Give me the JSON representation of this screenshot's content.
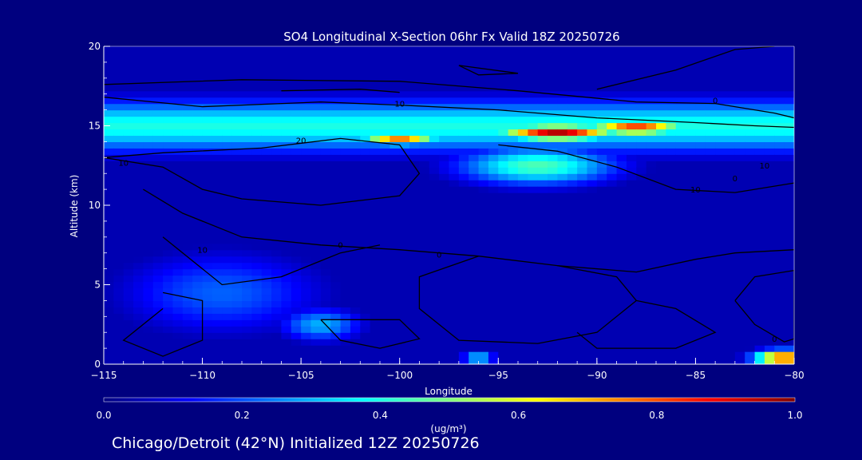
{
  "chart_data": {
    "type": "heatmap",
    "title": "SO4 Longitudinal X-Section 06hr  Fx Valid 18Z 20250726",
    "xlabel": "Longitude",
    "ylabel": "Altitude (km)",
    "xlim": [
      -115,
      -80
    ],
    "ylim": [
      0,
      20
    ],
    "x_ticks": [
      -115,
      -110,
      -105,
      -100,
      -95,
      -90,
      -85,
      -80
    ],
    "y_ticks": [
      0,
      5,
      10,
      15,
      20
    ],
    "colorbar": {
      "label": "(ug/m³)",
      "range": [
        0.0,
        1.0
      ],
      "ticks": [
        "0.0",
        "0.2",
        "0.4",
        "0.6",
        "0.8",
        "1.0"
      ],
      "colormap": [
        "#00007f",
        "#0000ff",
        "#0080ff",
        "#00ffff",
        "#80ff80",
        "#ffff00",
        "#ff8000",
        "#ff0000",
        "#7f0000"
      ]
    },
    "field_features": [
      {
        "name": "upper-layer",
        "lon_range": [
          -115,
          -80
        ],
        "alt_center": 15,
        "alt_halfwidth": 1.6,
        "value": 0.4
      },
      {
        "name": "peak-core",
        "lon_center": -92,
        "alt_center": 14.6,
        "lon_halfwidth": 3.0,
        "alt_halfwidth": 0.5,
        "value": 0.95
      },
      {
        "name": "east-max",
        "lon_center": -88,
        "alt_center": 14.9,
        "lon_halfwidth": 2.5,
        "alt_halfwidth": 0.45,
        "value": 0.85
      },
      {
        "name": "west-max",
        "lon_center": -100,
        "alt_center": 14.2,
        "lon_halfwidth": 2.0,
        "alt_halfwidth": 0.4,
        "value": 0.75
      },
      {
        "name": "plume-below",
        "lon_center": -93,
        "alt_center": 12.5,
        "lon_halfwidth": 4.0,
        "alt_halfwidth": 1.2,
        "value": 0.45
      },
      {
        "name": "low-west",
        "lon_center": -109,
        "alt_center": 4.5,
        "lon_halfwidth": 5.0,
        "alt_halfwidth": 2.5,
        "value": 0.22
      },
      {
        "name": "low-mid",
        "lon_center": -104,
        "alt_center": 2.5,
        "lon_halfwidth": 2.0,
        "alt_halfwidth": 1.0,
        "value": 0.3
      },
      {
        "name": "surface-east",
        "lon_center": -80.5,
        "alt_center": 0.4,
        "lon_halfwidth": 1.5,
        "alt_halfwidth": 0.5,
        "value": 0.85
      },
      {
        "name": "surface-spot",
        "lon_center": -96,
        "alt_center": 0.4,
        "lon_halfwidth": 0.8,
        "alt_halfwidth": 0.3,
        "value": 0.45
      }
    ],
    "contour_labels": [
      {
        "text": "10",
        "lon": -100,
        "alt": 16.2
      },
      {
        "text": "0",
        "lon": -84,
        "alt": 16.4
      },
      {
        "text": "20",
        "lon": -105,
        "alt": 13.9
      },
      {
        "text": "10",
        "lon": -114,
        "alt": 12.5
      },
      {
        "text": "10",
        "lon": -85,
        "alt": 10.8
      },
      {
        "text": "10",
        "lon": -81.5,
        "alt": 12.3
      },
      {
        "text": "0",
        "lon": -83,
        "alt": 11.5
      },
      {
        "text": "10",
        "lon": -110,
        "alt": 7.0
      },
      {
        "text": "0",
        "lon": -103,
        "alt": 7.3
      },
      {
        "text": "0",
        "lon": -98,
        "alt": 6.7
      },
      {
        "text": "0",
        "lon": -81,
        "alt": 1.4
      }
    ]
  },
  "footer": {
    "caption": "Chicago/Detroit (42°N) Initialized 12Z 20250726"
  }
}
